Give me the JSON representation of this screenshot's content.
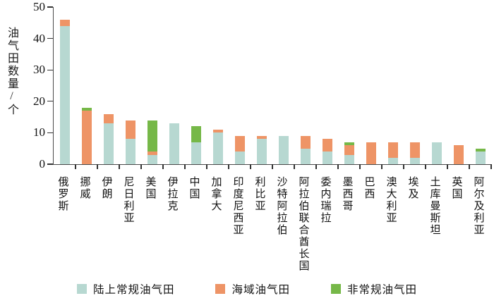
{
  "ylabel": "油气田数量/个",
  "chart_data": {
    "type": "bar",
    "stacked": true,
    "title": "",
    "xlabel": "",
    "ylabel": "油气田数量/个",
    "ylim": [
      0,
      50
    ],
    "yticks": [
      0,
      10,
      20,
      30,
      40,
      50
    ],
    "grid": false,
    "legend_position": "bottom",
    "categories": [
      "俄罗斯",
      "挪威",
      "伊朗",
      "尼日利亚",
      "美国",
      "伊拉克",
      "中国",
      "加拿大",
      "印度尼西亚",
      "利比亚",
      "沙特阿拉伯",
      "阿拉伯联合酋长国",
      "委内瑞拉",
      "墨西哥",
      "巴西",
      "澳大利亚",
      "埃及",
      "土库曼斯坦",
      "英国",
      "阿尔及利亚"
    ],
    "series": [
      {
        "name": "陆上常规油气田",
        "color": "#b7d8d1",
        "values": [
          44,
          0,
          13,
          8,
          3,
          13,
          7,
          10,
          4,
          8,
          9,
          5,
          4,
          3,
          0,
          2,
          2,
          7,
          0,
          4
        ]
      },
      {
        "name": "海域油气田",
        "color": "#ee9466",
        "values": [
          2,
          17,
          3,
          6,
          1,
          0,
          0,
          1,
          5,
          1,
          0,
          4,
          4,
          3,
          7,
          5,
          5,
          0,
          6,
          0
        ]
      },
      {
        "name": "非常规油气田",
        "color": "#76b848",
        "values": [
          0,
          1,
          0,
          0,
          10,
          0,
          5,
          0,
          0,
          0,
          0,
          0,
          0,
          1,
          0,
          0,
          0,
          0,
          0,
          1
        ]
      }
    ],
    "totals": [
      46,
      18,
      16,
      14,
      14,
      13,
      12,
      11,
      9,
      9,
      9,
      9,
      8,
      7,
      7,
      7,
      7,
      7,
      6,
      5
    ]
  },
  "colors": {
    "onshore": "#b7d8d1",
    "offshore": "#ee9466",
    "unconventional": "#76b848",
    "axis": "#4a4a4a",
    "text": "#111111",
    "background": "#ffffff"
  }
}
